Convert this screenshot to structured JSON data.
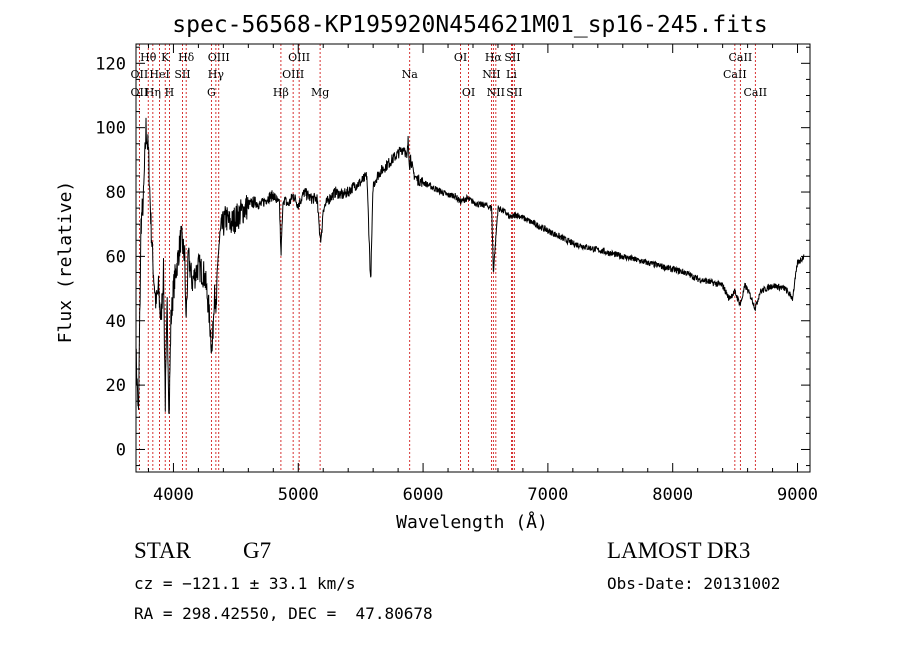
{
  "chart_data": {
    "type": "line",
    "title": "spec-56568-KP195920N454621M01_sp16-245.fits",
    "xlabel": "Wavelength (Å)",
    "ylabel": "Flux (relative)",
    "xlim": [
      3700,
      9100
    ],
    "ylim": [
      -7,
      126
    ],
    "xticks": [
      4000,
      5000,
      6000,
      7000,
      8000,
      9000
    ],
    "yticks": [
      0,
      20,
      40,
      60,
      80,
      100,
      120
    ],
    "grid": false,
    "spectrum_anchors": {
      "x": [
        3700,
        3720,
        3740,
        3760,
        3780,
        3800,
        3820,
        3840,
        3860,
        3880,
        3900,
        3920,
        3935,
        3950,
        3965,
        3980,
        4000,
        4030,
        4060,
        4090,
        4100,
        4120,
        4150,
        4200,
        4250,
        4280,
        4300,
        4310,
        4330,
        4340,
        4360,
        4380,
        4420,
        4460,
        4500,
        4550,
        4600,
        4650,
        4700,
        4750,
        4800,
        4850,
        4861,
        4880,
        4920,
        4960,
        5000,
        5050,
        5100,
        5150,
        5170,
        5184,
        5200,
        5250,
        5300,
        5350,
        5400,
        5450,
        5500,
        5550,
        5580,
        5600,
        5620,
        5650,
        5700,
        5750,
        5800,
        5850,
        5870,
        5880,
        5893,
        5900,
        5920,
        5950,
        6000,
        6050,
        6100,
        6150,
        6200,
        6250,
        6300,
        6350,
        6400,
        6450,
        6500,
        6550,
        6563,
        6600,
        6650,
        6700,
        6750,
        6800,
        6900,
        7000,
        7100,
        7200,
        7300,
        7400,
        7500,
        7600,
        7700,
        7800,
        7900,
        8000,
        8100,
        8200,
        8300,
        8400,
        8450,
        8498,
        8542,
        8580,
        8620,
        8662,
        8700,
        8800,
        8900,
        8960,
        9000,
        9050
      ],
      "y": [
        30,
        10,
        70,
        78,
        100,
        92,
        70,
        55,
        45,
        50,
        40,
        55,
        15,
        45,
        10,
        40,
        50,
        58,
        66,
        60,
        40,
        60,
        52,
        57,
        54,
        45,
        35,
        30,
        52,
        40,
        62,
        68,
        72,
        70,
        72,
        74,
        76,
        77,
        76,
        78,
        79,
        76,
        60,
        78,
        76,
        79,
        76,
        80,
        78,
        78,
        68,
        65,
        75,
        78,
        80,
        79,
        80,
        82,
        83,
        85,
        52,
        82,
        84,
        86,
        88,
        90,
        92,
        94,
        90,
        96,
        88,
        91,
        86,
        84,
        83,
        82,
        81,
        80,
        79,
        79,
        77,
        78,
        77,
        76,
        76,
        75,
        55,
        75,
        74,
        72,
        73,
        72,
        70,
        68,
        66,
        64,
        63,
        62,
        61,
        60,
        59,
        58,
        57,
        56,
        55,
        53,
        52,
        51,
        47,
        49,
        45,
        51,
        48,
        44,
        49,
        51,
        50,
        47,
        58,
        60
      ]
    },
    "line_labels": [
      {
        "text": "OII",
        "x": 3727,
        "row": 1
      },
      {
        "text": "OII",
        "x": 3727,
        "row": 2
      },
      {
        "text": "Hθ",
        "x": 3798,
        "row": 0
      },
      {
        "text": "Hη",
        "x": 3835,
        "row": 2
      },
      {
        "text": "HeI",
        "x": 3889,
        "row": 1
      },
      {
        "text": "K",
        "x": 3934,
        "row": 0
      },
      {
        "text": "H",
        "x": 3968,
        "row": 2
      },
      {
        "text": "SII",
        "x": 4072,
        "row": 1
      },
      {
        "text": "Hδ",
        "x": 4102,
        "row": 0
      },
      {
        "text": "G",
        "x": 4304,
        "row": 2
      },
      {
        "text": "Hγ",
        "x": 4340,
        "row": 1
      },
      {
        "text": "OIII",
        "x": 4363,
        "row": 0
      },
      {
        "text": "Hβ",
        "x": 4861,
        "row": 2
      },
      {
        "text": "OIII",
        "x": 4959,
        "row": 1
      },
      {
        "text": "OIII",
        "x": 5007,
        "row": 0
      },
      {
        "text": "Mg",
        "x": 5175,
        "row": 2
      },
      {
        "text": "Na",
        "x": 5893,
        "row": 1
      },
      {
        "text": "OI",
        "x": 6300,
        "row": 0
      },
      {
        "text": "OI",
        "x": 6364,
        "row": 2
      },
      {
        "text": "NII",
        "x": 6548,
        "row": 1
      },
      {
        "text": "Hα",
        "x": 6563,
        "row": 0
      },
      {
        "text": "NII",
        "x": 6583,
        "row": 2
      },
      {
        "text": "Li",
        "x": 6708,
        "row": 1
      },
      {
        "text": "SII",
        "x": 6716,
        "row": 0
      },
      {
        "text": "SII",
        "x": 6731,
        "row": 2
      },
      {
        "text": "CaII",
        "x": 8498,
        "row": 1
      },
      {
        "text": "CaII",
        "x": 8542,
        "row": 0
      },
      {
        "text": "CaII",
        "x": 8662,
        "row": 2
      }
    ],
    "line_wavelengths": [
      3727,
      3798,
      3835,
      3889,
      3934,
      3968,
      4072,
      4102,
      4304,
      4340,
      4363,
      4861,
      4959,
      5007,
      5175,
      5893,
      6300,
      6364,
      6548,
      6563,
      6583,
      6708,
      6716,
      6731,
      8498,
      8542,
      8662
    ],
    "colors": {
      "spectrum": "#000000",
      "marker_lines": "#cc0000"
    }
  },
  "info": {
    "object_class": "STAR",
    "subclass": "G7",
    "survey": "LAMOST DR3",
    "cz": "cz = −121.1 ± 33.1 km/s",
    "obs_date": "Obs-Date: 20131002",
    "coords": "RA = 298.42550, DEC =  47.80678"
  }
}
